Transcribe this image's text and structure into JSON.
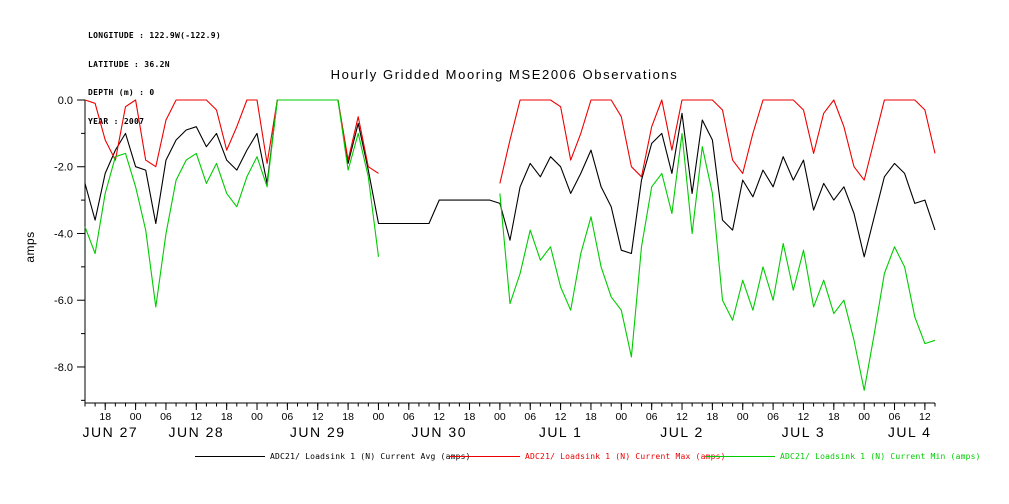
{
  "meta": {
    "lines": [
      "LONGITUDE : 122.9W(-122.9)",
      "LATITUDE : 36.2N",
      "DEPTH (m) : 0",
      "YEAR : 2007"
    ]
  },
  "chart_data": {
    "type": "line",
    "title": "Hourly Gridded Mooring MSE2006 Observations",
    "xlabel": "",
    "ylabel": "amps",
    "ylim": [
      -9.08,
      0
    ],
    "xlim_hours": [
      14,
      182
    ],
    "x_unit": "hours since 2007-06-27 00:00",
    "grid": false,
    "legend_position": "bottom",
    "y_ticks": [
      {
        "v": 0,
        "label": "0.0"
      },
      {
        "v": -2,
        "label": "-2.0"
      },
      {
        "v": -4,
        "label": "-4.0"
      },
      {
        "v": -6,
        "label": "-6.0"
      },
      {
        "v": -8,
        "label": "-8.0"
      }
    ],
    "x_ticks": [
      {
        "h": 18,
        "label": "18"
      },
      {
        "h": 24,
        "label": "00"
      },
      {
        "h": 30,
        "label": "06"
      },
      {
        "h": 36,
        "label": "12"
      },
      {
        "h": 42,
        "label": "18"
      },
      {
        "h": 48,
        "label": "00"
      },
      {
        "h": 54,
        "label": "06"
      },
      {
        "h": 60,
        "label": "12"
      },
      {
        "h": 66,
        "label": "18"
      },
      {
        "h": 72,
        "label": "00"
      },
      {
        "h": 78,
        "label": "06"
      },
      {
        "h": 84,
        "label": "12"
      },
      {
        "h": 90,
        "label": "18"
      },
      {
        "h": 96,
        "label": "00"
      },
      {
        "h": 102,
        "label": "06"
      },
      {
        "h": 108,
        "label": "12"
      },
      {
        "h": 114,
        "label": "18"
      },
      {
        "h": 120,
        "label": "00"
      },
      {
        "h": 126,
        "label": "06"
      },
      {
        "h": 132,
        "label": "12"
      },
      {
        "h": 138,
        "label": "18"
      },
      {
        "h": 144,
        "label": "00"
      },
      {
        "h": 150,
        "label": "06"
      },
      {
        "h": 156,
        "label": "12"
      },
      {
        "h": 162,
        "label": "18"
      },
      {
        "h": 168,
        "label": "00"
      },
      {
        "h": 174,
        "label": "06"
      },
      {
        "h": 180,
        "label": "12"
      }
    ],
    "day_labels": [
      {
        "h": 19,
        "label": "JUN 27"
      },
      {
        "h": 36,
        "label": "JUN 28"
      },
      {
        "h": 60,
        "label": "JUN 29"
      },
      {
        "h": 84,
        "label": "JUN 30"
      },
      {
        "h": 108,
        "label": "JUL 1"
      },
      {
        "h": 132,
        "label": "JUL 2"
      },
      {
        "h": 156,
        "label": "JUL 3"
      },
      {
        "h": 177,
        "label": "JUL 4"
      }
    ],
    "x": [
      14,
      16,
      18,
      20,
      22,
      24,
      26,
      28,
      30,
      32,
      34,
      36,
      38,
      40,
      42,
      44,
      46,
      48,
      50,
      52,
      54,
      56,
      58,
      60,
      62,
      64,
      66,
      68,
      70,
      72,
      74,
      76,
      78,
      80,
      82,
      84,
      86,
      88,
      90,
      92,
      94,
      96,
      98,
      100,
      102,
      104,
      106,
      108,
      110,
      112,
      114,
      116,
      118,
      120,
      122,
      124,
      126,
      128,
      130,
      132,
      134,
      136,
      138,
      140,
      142,
      144,
      146,
      148,
      150,
      152,
      154,
      156,
      158,
      160,
      162,
      164,
      166,
      168,
      170,
      172,
      174,
      176,
      178,
      180,
      182
    ],
    "series": [
      {
        "name": "ADC21/ Loadsink 1 (N) Current Avg (amps)",
        "color": "#000000",
        "values": [
          -2.5,
          -3.6,
          -2.2,
          -1.5,
          -1.0,
          -2.0,
          -2.1,
          -3.7,
          -1.8,
          -1.2,
          -0.9,
          -0.8,
          -1.4,
          -1.0,
          -1.8,
          -2.1,
          -1.5,
          -1.0,
          -2.5,
          0,
          0,
          0,
          0,
          0,
          0,
          0,
          -1.9,
          -0.7,
          -2.1,
          -3.7,
          -3.7,
          -3.7,
          -3.7,
          -3.7,
          -3.7,
          -3.0,
          -3.0,
          -3.0,
          -3.0,
          -3.0,
          -3.0,
          -3.1,
          -4.2,
          -2.6,
          -1.9,
          -2.3,
          -1.7,
          -2.0,
          -2.8,
          -2.2,
          -1.5,
          -2.6,
          -3.2,
          -4.5,
          -4.6,
          -2.4,
          -1.3,
          -1.0,
          -2.2,
          -0.4,
          -2.8,
          -0.6,
          -1.2,
          -3.6,
          -3.9,
          -2.4,
          -2.9,
          -2.1,
          -2.6,
          -1.7,
          -2.4,
          -1.8,
          -3.3,
          -2.5,
          -3.0,
          -2.6,
          -3.4,
          -4.7,
          -3.5,
          -2.3,
          -1.9,
          -2.2,
          -3.1,
          -3.0,
          -3.9
        ]
      },
      {
        "name": "ADC21/ Loadsink 1 (N) Current Max (amps)",
        "color": "#ee0000",
        "values": [
          0,
          -0.1,
          -1.2,
          -1.8,
          -0.2,
          0,
          -1.8,
          -2.0,
          -0.6,
          0,
          0,
          0,
          0,
          -0.3,
          -1.5,
          -0.8,
          0,
          0,
          -1.9,
          0,
          0,
          0,
          0,
          0,
          0,
          0,
          -1.8,
          -0.5,
          -2.0,
          -2.2,
          null,
          null,
          null,
          null,
          null,
          null,
          null,
          null,
          null,
          null,
          null,
          -2.5,
          -1.2,
          0,
          0,
          0,
          0,
          -0.2,
          -1.8,
          -1.0,
          0,
          0,
          0,
          -0.5,
          -2.0,
          -2.3,
          -0.8,
          0,
          -1.5,
          0,
          0,
          0,
          0,
          -0.3,
          -1.8,
          -2.2,
          -1.0,
          0,
          0,
          0,
          0,
          -0.3,
          -1.6,
          -0.4,
          0,
          -0.8,
          -2.0,
          -2.4,
          -1.2,
          0,
          0,
          0,
          0,
          -0.3,
          -1.6
        ]
      },
      {
        "name": "ADC21/ Loadsink 1 (N) Current Min (amps)",
        "color": "#00cc00",
        "values": [
          -3.8,
          -4.6,
          -2.8,
          -1.7,
          -1.6,
          -2.6,
          -3.9,
          -6.2,
          -4.0,
          -2.4,
          -1.8,
          -1.6,
          -2.5,
          -1.9,
          -2.8,
          -3.2,
          -2.3,
          -1.7,
          -2.6,
          0,
          0,
          0,
          0,
          0,
          0,
          0,
          -2.1,
          -1.0,
          -2.3,
          -4.7,
          null,
          null,
          null,
          null,
          null,
          null,
          null,
          null,
          null,
          null,
          null,
          -2.8,
          -6.1,
          -5.2,
          -3.9,
          -4.8,
          -4.4,
          -5.6,
          -6.3,
          -4.6,
          -3.5,
          -5.0,
          -5.9,
          -6.3,
          -7.7,
          -4.4,
          -2.6,
          -2.2,
          -3.4,
          -1.0,
          -4.0,
          -1.4,
          -2.8,
          -6.0,
          -6.6,
          -5.4,
          -6.3,
          -5.0,
          -6.0,
          -4.3,
          -5.7,
          -4.5,
          -6.2,
          -5.4,
          -6.4,
          -6.0,
          -7.2,
          -8.7,
          -7.0,
          -5.2,
          -4.4,
          -5.0,
          -6.5,
          -7.3,
          -7.2
        ]
      }
    ]
  }
}
